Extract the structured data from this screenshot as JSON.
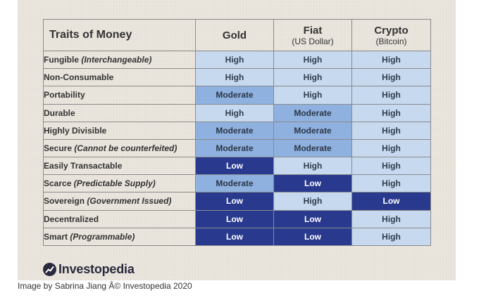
{
  "table": {
    "header": {
      "title": "Traits of Money",
      "columns": [
        {
          "main": "Gold",
          "sub": ""
        },
        {
          "main": "Fiat",
          "sub": "(US Dollar)"
        },
        {
          "main": "Crypto",
          "sub": "(Bitcoin)"
        }
      ]
    },
    "rows": [
      {
        "trait": "Fungible",
        "note": "(Interchangeable)",
        "values": [
          "High",
          "High",
          "High"
        ]
      },
      {
        "trait": "Non-Consumable",
        "note": "",
        "values": [
          "High",
          "High",
          "High"
        ]
      },
      {
        "trait": "Portability",
        "note": "",
        "values": [
          "Moderate",
          "High",
          "High"
        ]
      },
      {
        "trait": "Durable",
        "note": "",
        "values": [
          "High",
          "Moderate",
          "High"
        ]
      },
      {
        "trait": "Highly Divisible",
        "note": "",
        "values": [
          "Moderate",
          "Moderate",
          "High"
        ]
      },
      {
        "trait": "Secure",
        "note": "(Cannot be counterfeited)",
        "values": [
          "Moderate",
          "Moderate",
          "High"
        ]
      },
      {
        "trait": "Easily Transactable",
        "note": "",
        "values": [
          "Low",
          "High",
          "High"
        ]
      },
      {
        "trait": "Scarce",
        "note": "(Predictable Supply)",
        "values": [
          "Moderate",
          "Low",
          "High"
        ]
      },
      {
        "trait": "Sovereign",
        "note": "(Government Issued)",
        "values": [
          "Low",
          "High",
          "Low"
        ]
      },
      {
        "trait": "Decentralized",
        "note": "",
        "values": [
          "Low",
          "Low",
          "High"
        ]
      },
      {
        "trait": "Smart",
        "note": "(Programmable)",
        "values": [
          "Low",
          "Low",
          "High"
        ]
      }
    ],
    "colors": {
      "High": "#c6d9ef",
      "Moderate": "#8fb1df",
      "Low": "#293a8e"
    }
  },
  "logo": {
    "text": "Investopedia",
    "icon": "investopedia-logo-icon"
  },
  "credit": "Image by Sabrina Jiang Â© Investopedia 2020"
}
